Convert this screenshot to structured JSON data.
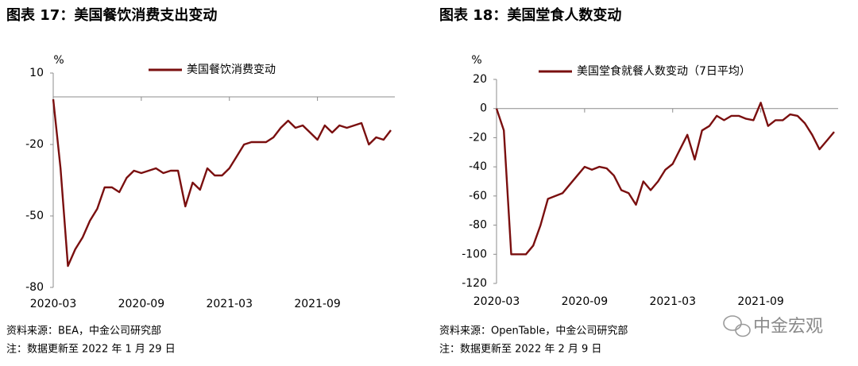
{
  "chart_data": [
    {
      "type": "line",
      "title": "图表 17：美国餐饮消费支出变动",
      "ylabel": "%",
      "categories": [
        "2020-03",
        null,
        null,
        null,
        null,
        null,
        null,
        null,
        null,
        null,
        null,
        null,
        "2020-09",
        null,
        null,
        null,
        null,
        null,
        null,
        null,
        null,
        null,
        null,
        null,
        "2021-03",
        null,
        null,
        null,
        null,
        null,
        null,
        null,
        null,
        null,
        null,
        null,
        "2021-09",
        null,
        null,
        null,
        null,
        null,
        null,
        null,
        null,
        null,
        null
      ],
      "series": [
        {
          "name": "美国餐饮消费变动",
          "color": "#7a0f0f",
          "values": [
            -1,
            -30,
            -71,
            -64,
            -59,
            -52,
            -47,
            -38,
            -38,
            -40,
            -34,
            -31,
            -32,
            -31,
            -30,
            -32,
            -31,
            -31,
            -46,
            -36,
            -39,
            -30,
            -33,
            -33,
            -30,
            -25,
            -20,
            -19,
            -19,
            -19,
            -17,
            -13,
            -10,
            -13,
            -12,
            -15,
            -18,
            -12,
            -15,
            -12,
            -13,
            -12,
            -11,
            -20,
            -17,
            -18,
            -14
          ]
        }
      ],
      "ylim": [
        -80,
        10
      ],
      "yticks": [
        10,
        -20,
        -50,
        -80
      ],
      "source": "资料来源：BEA，中金公司研究部",
      "note": "注：数据更新至 2022 年 1 月 29 日"
    },
    {
      "type": "line",
      "title": "图表 18：美国堂食人数变动",
      "ylabel": "%",
      "categories": [
        "2020-03",
        null,
        null,
        null,
        null,
        null,
        null,
        null,
        null,
        null,
        null,
        null,
        "2020-09",
        null,
        null,
        null,
        null,
        null,
        null,
        null,
        null,
        null,
        null,
        null,
        "2021-03",
        null,
        null,
        null,
        null,
        null,
        null,
        null,
        null,
        null,
        null,
        null,
        "2021-09",
        null,
        null,
        null,
        null,
        null,
        null,
        null,
        null,
        null,
        null
      ],
      "series": [
        {
          "name": "美国堂食就餐人数变动（7日平均）",
          "color": "#7a0f0f",
          "values": [
            0,
            -15,
            -100,
            -100,
            -100,
            -94,
            -80,
            -62,
            -60,
            -58,
            -52,
            -46,
            -40,
            -42,
            -40,
            -41,
            -46,
            -56,
            -58,
            -66,
            -50,
            -56,
            -50,
            -42,
            -38,
            -28,
            -18,
            -35,
            -15,
            -12,
            -5,
            -8,
            -5,
            -5,
            -7,
            -8,
            4,
            -12,
            -8,
            -8,
            -4,
            -5,
            -10,
            -18,
            -28,
            -22,
            -16
          ]
        }
      ],
      "ylim": [
        -120,
        20
      ],
      "yticks": [
        20,
        0,
        -20,
        -40,
        -60,
        -80,
        -100,
        -120
      ],
      "source": "资料来源：OpenTable，中金公司研究部",
      "note": "注：数据更新至 2022 年 2 月 9 日"
    }
  ],
  "watermark": "中金宏观"
}
